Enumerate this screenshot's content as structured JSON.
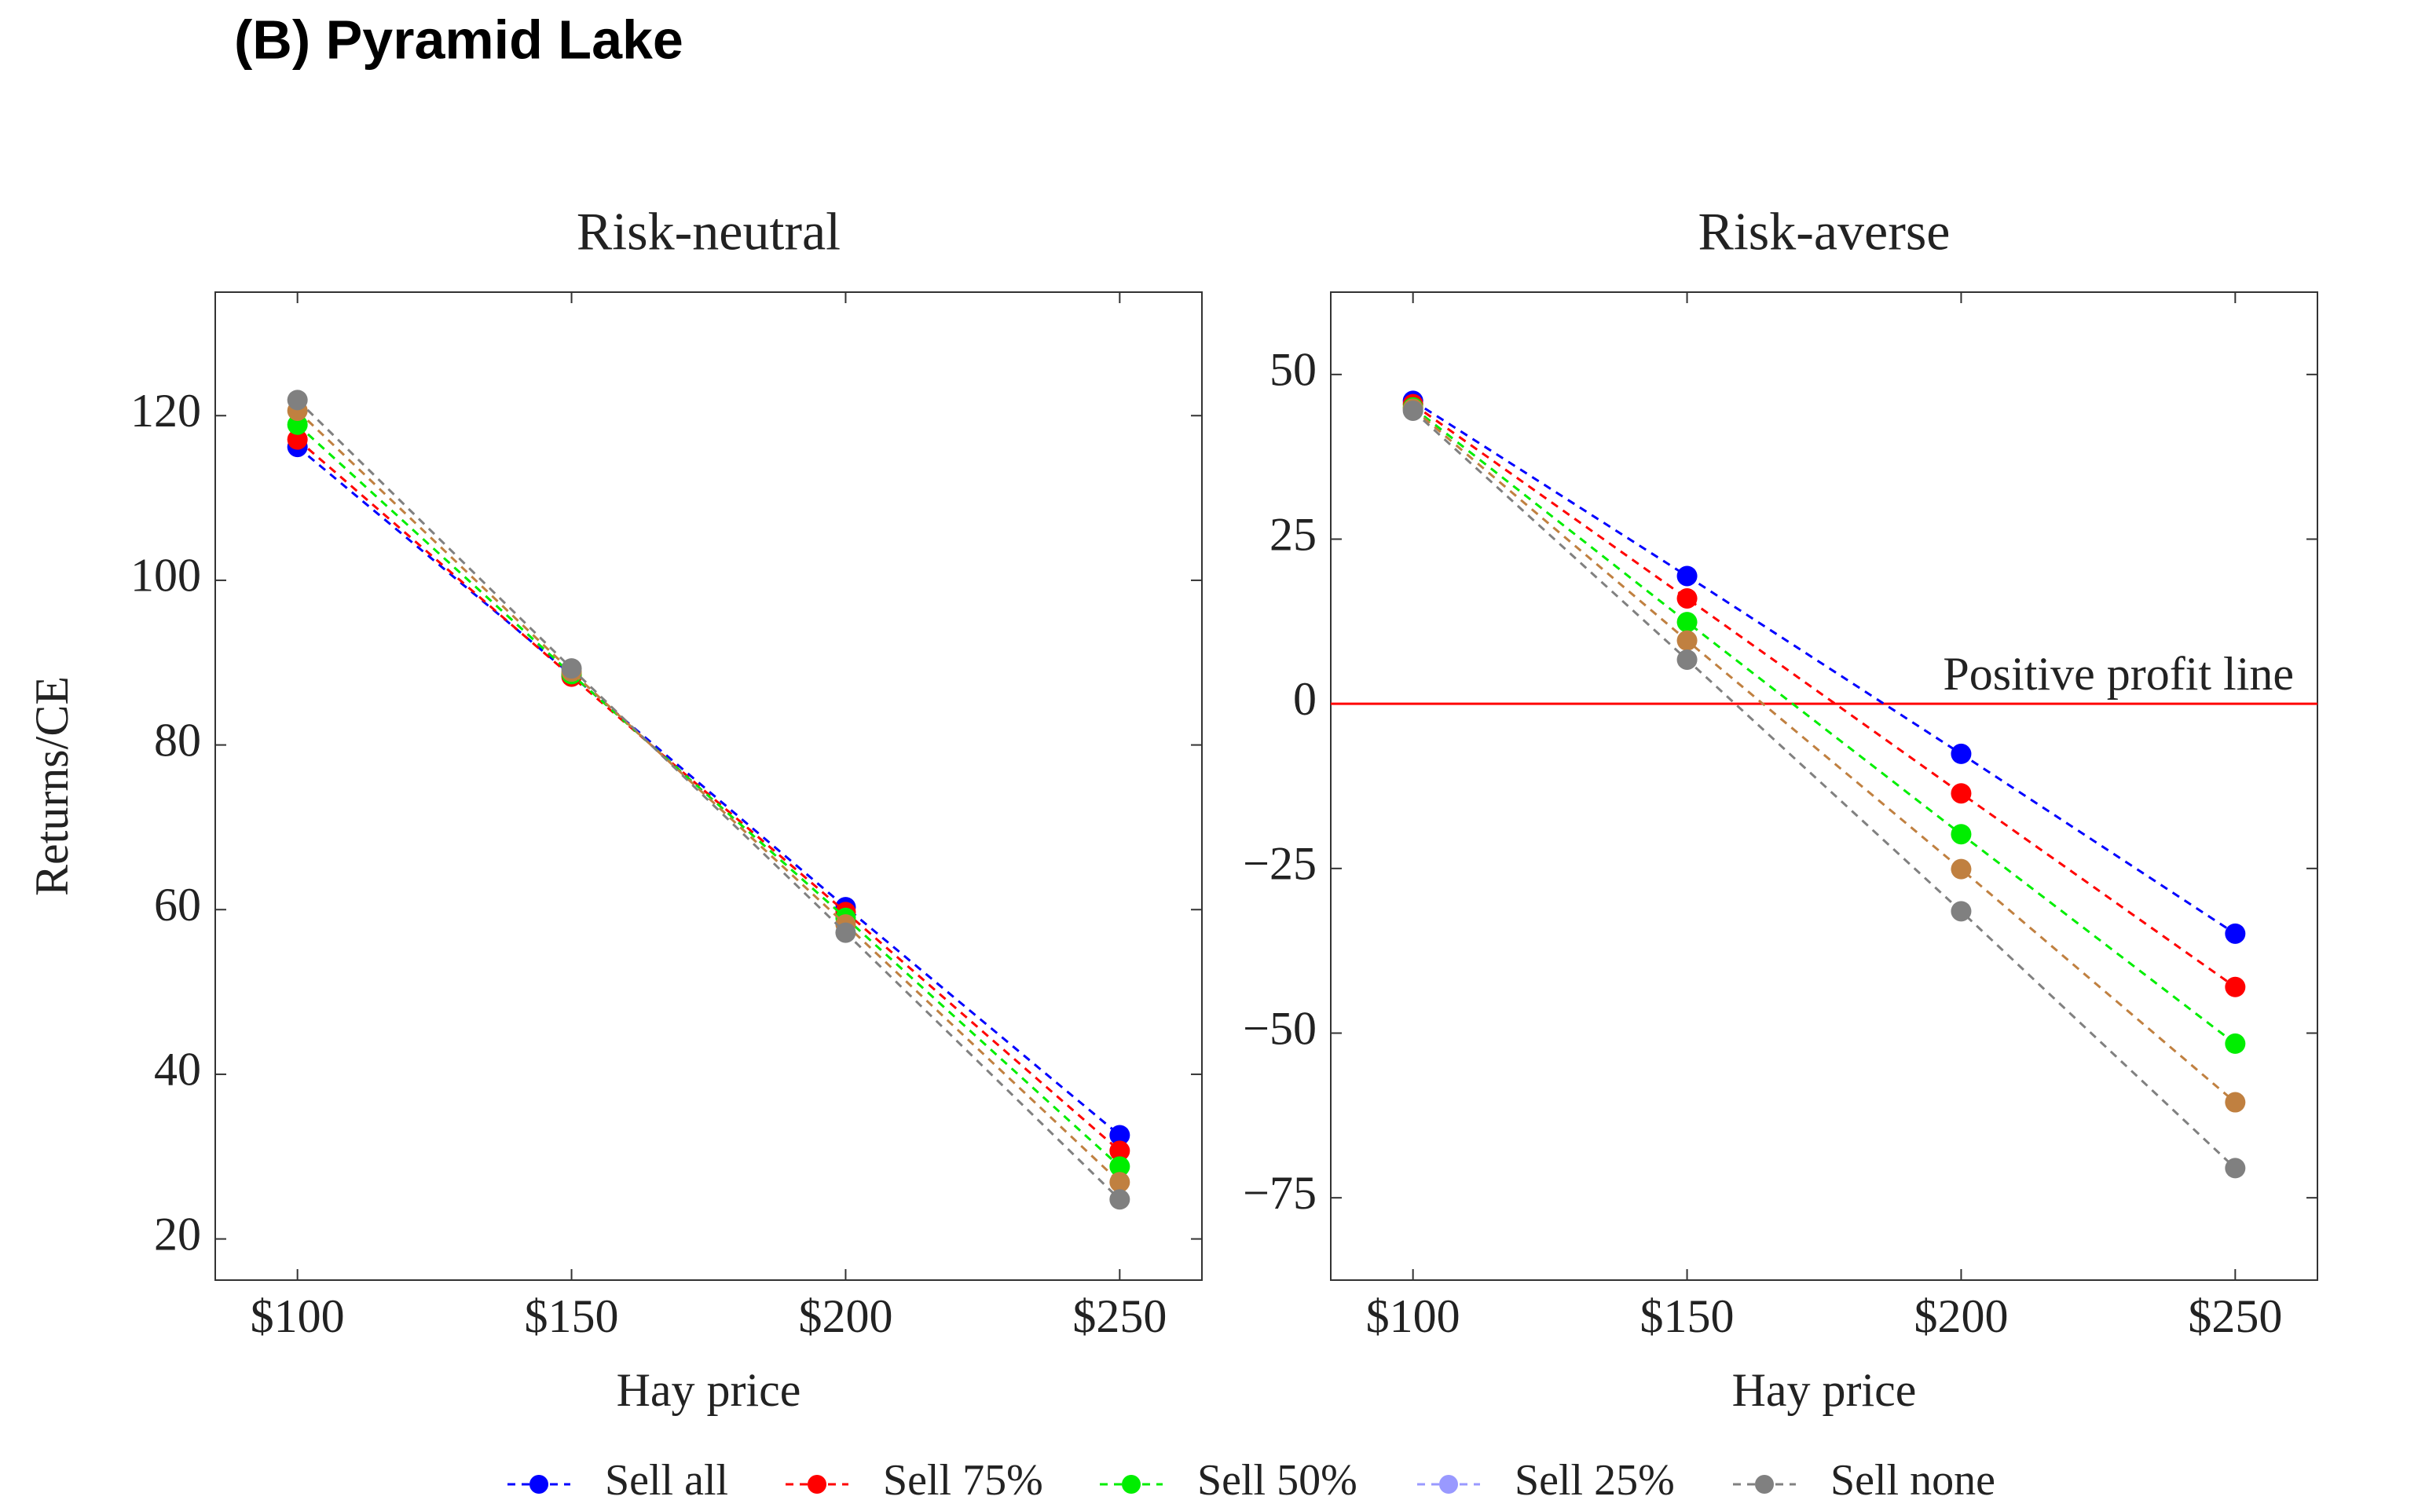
{
  "title": "(B) Pyramid Lake",
  "chart_data": [
    {
      "type": "line",
      "title": "Risk-neutral",
      "x_label": "Hay price",
      "y_label": "Returns/CE",
      "x": [
        100,
        150,
        200,
        250
      ],
      "xlim": [
        85,
        265
      ],
      "xticks": [
        {
          "value": 100,
          "label": "$100"
        },
        {
          "value": 150,
          "label": "$150"
        },
        {
          "value": 200,
          "label": "$200"
        },
        {
          "value": 250,
          "label": "$250"
        }
      ],
      "ylim": [
        15,
        135
      ],
      "yticks": [
        20,
        40,
        60,
        80,
        100,
        120
      ],
      "series": [
        {
          "name": "Sell all",
          "color": "#0000ff",
          "values": [
            116.2,
            88.5,
            60.3,
            32.6
          ]
        },
        {
          "name": "Sell 75%",
          "color": "#ff0000",
          "values": [
            117.1,
            88.3,
            59.7,
            30.7
          ]
        },
        {
          "name": "Sell 50%",
          "color": "#00ee00",
          "values": [
            118.9,
            88.6,
            59.0,
            28.8
          ]
        },
        {
          "name": "Sell 25%",
          "color": "#c08040",
          "legend_color": "#9999ff",
          "values": [
            120.6,
            88.9,
            58.2,
            26.9
          ]
        },
        {
          "name": "Sell none",
          "color": "#808080",
          "values": [
            121.9,
            89.3,
            57.2,
            24.8
          ]
        }
      ]
    },
    {
      "type": "line",
      "title": "Risk-averse",
      "x_label": "Hay price",
      "x": [
        100,
        150,
        200,
        250
      ],
      "xlim": [
        85,
        265
      ],
      "xticks": [
        {
          "value": 100,
          "label": "$100"
        },
        {
          "value": 150,
          "label": "$150"
        },
        {
          "value": 200,
          "label": "$200"
        },
        {
          "value": 250,
          "label": "$250"
        }
      ],
      "ylim": [
        -87.5,
        62.5
      ],
      "yticks": [
        {
          "value": -75,
          "label": "−75"
        },
        {
          "value": -50,
          "label": "−50"
        },
        {
          "value": -25,
          "label": "−25"
        },
        0,
        25,
        50
      ],
      "reference_line": {
        "value": 0,
        "color": "#ff0000",
        "label": "Positive profit line"
      },
      "series": [
        {
          "name": "Sell all",
          "color": "#0000ff",
          "values": [
            46.0,
            19.4,
            -7.6,
            -34.9
          ]
        },
        {
          "name": "Sell 75%",
          "color": "#ff0000",
          "values": [
            45.5,
            16.0,
            -13.6,
            -43.0
          ]
        },
        {
          "name": "Sell 50%",
          "color": "#00ee00",
          "values": [
            45.0,
            12.4,
            -19.8,
            -51.6
          ]
        },
        {
          "name": "Sell 25%",
          "color": "#c08040",
          "legend_color": "#9999ff",
          "values": [
            44.8,
            9.6,
            -25.1,
            -60.5
          ]
        },
        {
          "name": "Sell none",
          "color": "#808080",
          "values": [
            44.5,
            6.7,
            -31.5,
            -70.5
          ]
        }
      ]
    }
  ]
}
